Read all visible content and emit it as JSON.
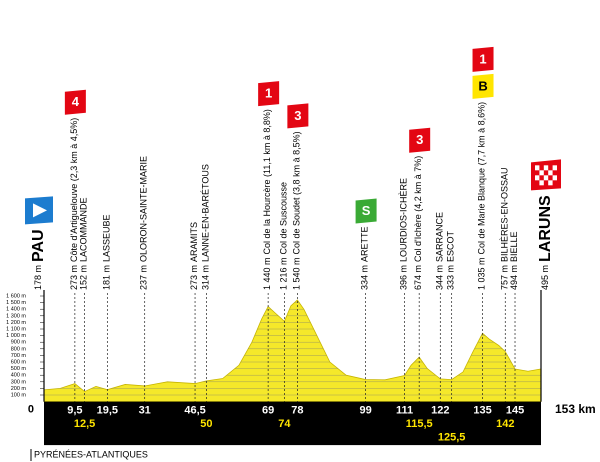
{
  "chart_data": {
    "type": "area",
    "x": [
      0,
      5,
      9.5,
      12.5,
      16,
      19.5,
      25,
      31,
      38,
      46.5,
      50,
      55,
      60,
      64,
      67,
      69,
      71,
      74,
      76,
      78,
      80,
      84,
      88,
      93,
      99,
      105,
      111,
      113,
      115.5,
      118,
      122,
      125.5,
      129,
      132,
      135,
      137,
      140,
      142,
      145,
      149,
      153
    ],
    "values": [
      178,
      200,
      273,
      152,
      230,
      181,
      260,
      237,
      300,
      273,
      314,
      350,
      550,
      900,
      1250,
      1440,
      1350,
      1216,
      1450,
      1540,
      1400,
      1000,
      600,
      400,
      334,
      330,
      396,
      550,
      674,
      500,
      344,
      333,
      450,
      750,
      1035,
      950,
      850,
      757,
      494,
      460,
      495
    ],
    "color": "#f5e82a",
    "xlim": [
      0,
      153
    ],
    "ylim": [
      0,
      1600
    ],
    "yticks": [
      {
        "value": 100,
        "label": "100 m"
      },
      {
        "value": 200,
        "label": "200 m"
      },
      {
        "value": 300,
        "label": "300 m"
      },
      {
        "value": 400,
        "label": "400 m"
      },
      {
        "value": 500,
        "label": "500 m"
      },
      {
        "value": 600,
        "label": "600 m"
      },
      {
        "value": 700,
        "label": "700 m"
      },
      {
        "value": 800,
        "label": "800 m"
      },
      {
        "value": 900,
        "label": "900 m"
      },
      {
        "value": 1000,
        "label": "1 000 m"
      },
      {
        "value": 1100,
        "label": "1 100 m"
      },
      {
        "value": 1200,
        "label": "1 200 m"
      },
      {
        "value": 1300,
        "label": "1 300 m"
      },
      {
        "value": 1400,
        "label": "1 400 m"
      },
      {
        "value": 1500,
        "label": "1 500 m"
      },
      {
        "value": 1600,
        "label": "1 600 m"
      }
    ],
    "xticks": [
      0,
      {
        "value": 9.5,
        "label": "9,5"
      },
      {
        "value": 12.5,
        "label": "12,5"
      },
      {
        "value": 19.5,
        "label": "19,5"
      },
      31,
      {
        "value": 46.5,
        "label": "46,5"
      },
      50,
      69,
      74,
      78,
      99,
      111,
      {
        "value": 115.5,
        "label": "115,5"
      },
      122,
      {
        "value": 125.5,
        "label": "125,5"
      },
      135,
      142,
      145,
      {
        "value": 153,
        "label": "153 km"
      }
    ],
    "grid": true,
    "waypoints": [
      {
        "alt": "178 m",
        "name": "PAU"
      },
      {
        "alt": "273 m",
        "name": "Côte d'Artiguelouve (2,3 km à 4,5%)",
        "badges": [
          {
            "text": "4",
            "color": "#e30613"
          }
        ]
      },
      {
        "alt": "152 m",
        "name": "LACOMMANDE"
      },
      {
        "alt": "181 m",
        "name": "LASSEUBE"
      },
      {
        "alt": "237 m",
        "name": "OLORON-SAINTE-MARIE"
      },
      {
        "alt": "273 m",
        "name": "ARAMITS"
      },
      {
        "alt": "314 m",
        "name": "LANNE-EN-BARÉTOUS"
      },
      {
        "alt": "1 440 m",
        "name": "Col de la Hourcère (11,1 km à 8,8%)",
        "badges": [
          {
            "text": "1",
            "color": "#e30613"
          }
        ]
      },
      {
        "alt": "1 216 m",
        "name": "Col de Suscousse"
      },
      {
        "alt": "1 540 m",
        "name": "Col de Soudet (3,8 km à 8,5%)",
        "badges": [
          {
            "text": "3",
            "color": "#e30613"
          }
        ]
      },
      {
        "alt": "334 m",
        "name": "ARETTE",
        "badges": [
          {
            "text": "S",
            "color": "#3aaa35"
          }
        ]
      },
      {
        "alt": "396 m",
        "name": "LOURDIOS-ICHÈRE"
      },
      {
        "alt": "674 m",
        "name": "Col d'Ichère (4,2 km à 7%)",
        "badges": [
          {
            "text": "3",
            "color": "#e30613"
          }
        ]
      },
      {
        "alt": "344 m",
        "name": "SARRANCE"
      },
      {
        "alt": "333 m",
        "name": "ESCOT"
      },
      {
        "alt": "1 035 m",
        "name": "Col de Marie Blanque (7,7 km à 8,6%)",
        "badges": [
          {
            "text": "B",
            "color": "#ffe500"
          },
          {
            "text": "1",
            "color": "#e30613"
          }
        ]
      },
      {
        "alt": "757 m",
        "name": "BILHÈRES-EN-OSSAU"
      },
      {
        "alt": "494 m",
        "name": "BIELLE"
      },
      {
        "alt": "495 m",
        "name": "LARUNS"
      }
    ],
    "region": "PYRÉNÉES-ATLANTIQUES"
  }
}
